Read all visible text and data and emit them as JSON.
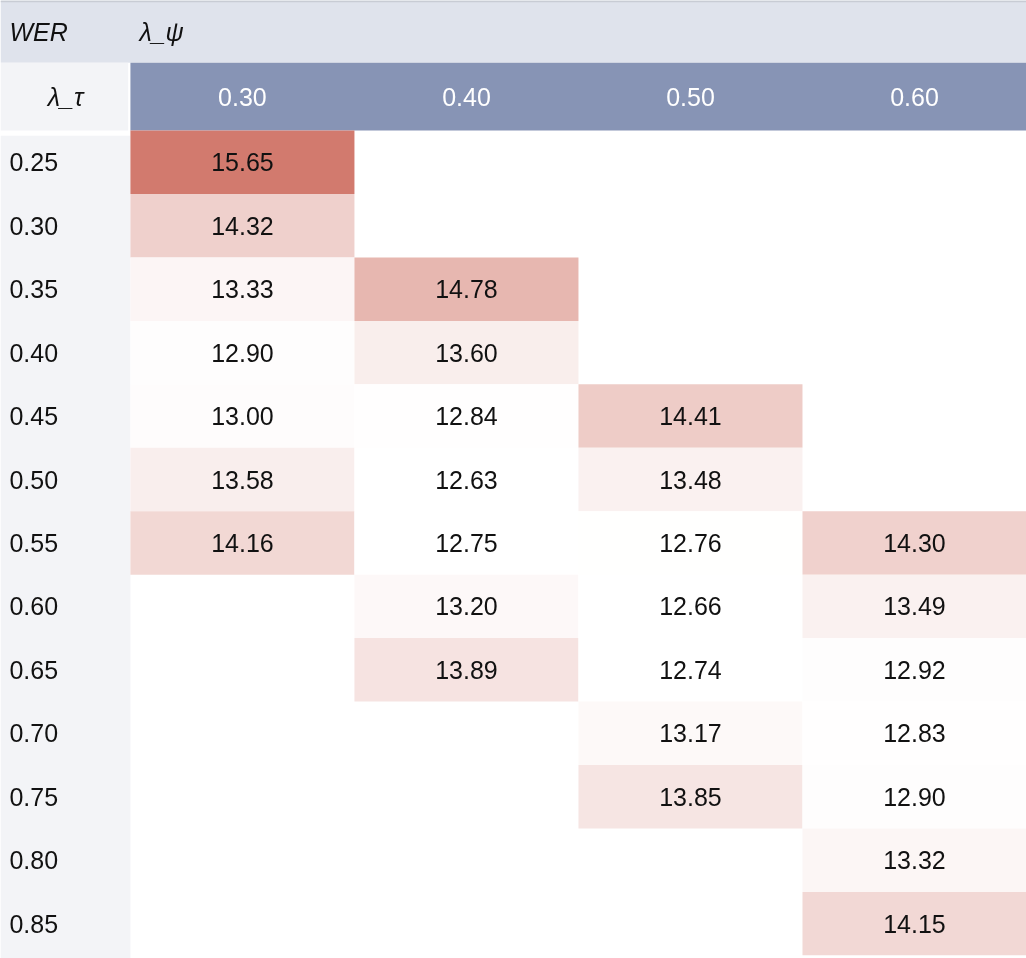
{
  "chart_data": {
    "type": "heatmap",
    "title": "WER",
    "xlabel": "λ_ψ",
    "ylabel": "λ_τ",
    "categories": [
      "0.30",
      "0.40",
      "0.50",
      "0.60"
    ],
    "y_categories": [
      "0.25",
      "0.30",
      "0.35",
      "0.40",
      "0.45",
      "0.50",
      "0.55",
      "0.60",
      "0.65",
      "0.70",
      "0.75",
      "0.80",
      "0.85"
    ],
    "cells": [
      [
        15.65,
        null,
        null,
        null
      ],
      [
        14.32,
        null,
        null,
        null
      ],
      [
        13.33,
        14.78,
        null,
        null
      ],
      [
        12.9,
        13.6,
        null,
        null
      ],
      [
        13.0,
        12.84,
        14.41,
        null
      ],
      [
        13.58,
        12.63,
        13.48,
        null
      ],
      [
        14.16,
        12.75,
        12.76,
        14.3
      ],
      [
        null,
        13.2,
        12.66,
        13.49
      ],
      [
        null,
        13.89,
        12.74,
        12.92
      ],
      [
        null,
        null,
        13.17,
        12.83
      ],
      [
        null,
        null,
        13.85,
        12.9
      ],
      [
        null,
        null,
        null,
        13.32
      ],
      [
        null,
        null,
        null,
        14.15
      ]
    ],
    "cell_labels": [
      [
        "15.65",
        null,
        null,
        null
      ],
      [
        "14.32",
        null,
        null,
        null
      ],
      [
        "13.33",
        "14.78",
        null,
        null
      ],
      [
        "12.90",
        "13.60",
        null,
        null
      ],
      [
        "13.00",
        "12.84",
        "14.41",
        null
      ],
      [
        "13.58",
        "12.63",
        "13.48",
        null
      ],
      [
        "14.16",
        "12.75",
        "12.76",
        "14.30"
      ],
      [
        null,
        "13.20",
        "12.66",
        "13.49"
      ],
      [
        null,
        "13.89",
        "12.74",
        "12.92"
      ],
      [
        null,
        null,
        "13.17",
        "12.83"
      ],
      [
        null,
        null,
        "13.85",
        "12.90"
      ],
      [
        null,
        null,
        null,
        "13.32"
      ],
      [
        null,
        null,
        null,
        "14.15"
      ]
    ]
  }
}
